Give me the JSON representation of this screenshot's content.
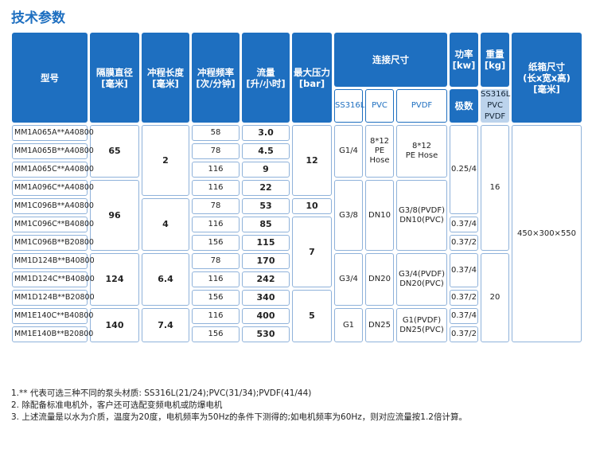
{
  "title": "技术参数",
  "table": {
    "header": [
      "型号",
      "隔膜直径\n[毫米]",
      "冲程长度\n[毫米]",
      "冲程频率\n[次/分钟]",
      "流量\n[升/小时]",
      "最大压力\n[bar]",
      "连接尺寸",
      "功率\n[kw]",
      "重量\n[kg]",
      "纸箱尺寸\n(长x宽x高)\n[毫米]"
    ],
    "subheader": [
      "SS316L",
      "PVC",
      "PVDF",
      "极数",
      "SS316L\nPVC\nPVDF"
    ],
    "rows": [
      [
        "MM1A065A**A40800",
        "65",
        "2",
        "58",
        "3.0",
        "12",
        "G1/4",
        "8*12\nPE\nHose",
        "8*12\nPE Hose",
        "0.25/4",
        "16",
        "450×300×550"
      ],
      [
        "MM1A065B**A40800",
        "78",
        "4.5"
      ],
      [
        "MM1A065C**A40800",
        "116",
        "9"
      ],
      [
        "MM1A096C**A40800",
        "96",
        "116",
        "22",
        "G3/8",
        "DN10",
        "G3/8(PVDF)\nDN10(PVC)"
      ],
      [
        "MM1C096B**A40800",
        "4",
        "78",
        "53",
        "10"
      ],
      [
        "MM1C096C**B40800",
        "116",
        "85",
        "7",
        "0.37/4"
      ],
      [
        "MM1C096B**B20800",
        "156",
        "115",
        "0.37/2"
      ],
      [
        "MM1D124B**B40800",
        "124",
        "6.4",
        "78",
        "170",
        "G3/4",
        "DN20",
        "G3/4(PVDF)\nDN20(PVC)",
        "0.37/4",
        "20"
      ],
      [
        "MM1D124C**B40800",
        "116",
        "242"
      ],
      [
        "MM1D124B**B20800",
        "156",
        "340",
        "5",
        "0.37/2"
      ],
      [
        "MM1E140C**B40800",
        "140",
        "7.4",
        "116",
        "400",
        "G1",
        "DN25",
        "G1(PVDF)\nDN25(PVC)",
        "0.37/4"
      ],
      [
        "MM1E140B**B20800",
        "156",
        "530",
        "0.37/2"
      ]
    ]
  },
  "notes": [
    "1.** 代表可选三种不同的泵头材质: SS316L(21/24);PVC(31/34);PVDF(41/44)",
    "2. 除配备标准电机外，客户还可选配变频电机或防爆电机",
    "3. 上述流量是以水为介质，温度为20度，电机频率为50Hz的条件下测得的;如电机频率为60Hz，则对应流量按1.2倍计算。"
  ]
}
